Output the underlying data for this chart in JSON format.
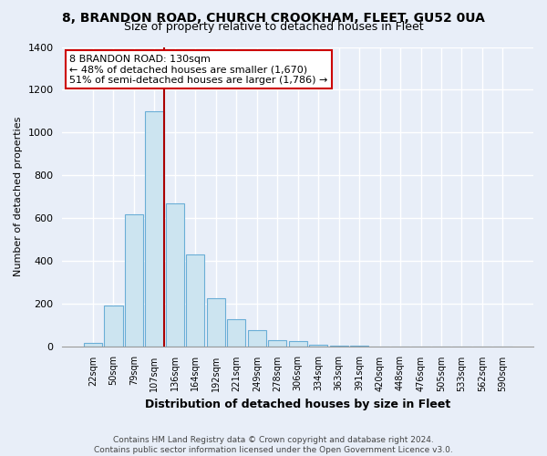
{
  "title": "8, BRANDON ROAD, CHURCH CROOKHAM, FLEET, GU52 0UA",
  "subtitle": "Size of property relative to detached houses in Fleet",
  "xlabel": "Distribution of detached houses by size in Fleet",
  "ylabel": "Number of detached properties",
  "bar_labels": [
    "22sqm",
    "50sqm",
    "79sqm",
    "107sqm",
    "136sqm",
    "164sqm",
    "192sqm",
    "221sqm",
    "249sqm",
    "278sqm",
    "306sqm",
    "334sqm",
    "363sqm",
    "391sqm",
    "420sqm",
    "448sqm",
    "476sqm",
    "505sqm",
    "533sqm",
    "562sqm",
    "590sqm"
  ],
  "bar_values": [
    15,
    190,
    615,
    1100,
    670,
    430,
    225,
    125,
    75,
    30,
    22,
    5,
    3,
    2,
    0,
    0,
    0,
    0,
    0,
    0,
    0
  ],
  "bar_color": "#cce4f0",
  "bar_edge_color": "#6aaed6",
  "vline_color": "#aa0000",
  "annotation_text": "8 BRANDON ROAD: 130sqm\n← 48% of detached houses are smaller (1,670)\n51% of semi-detached houses are larger (1,786) →",
  "annotation_box_color": "#ffffff",
  "annotation_box_edge": "#cc0000",
  "ylim": [
    0,
    1400
  ],
  "yticks": [
    0,
    200,
    400,
    600,
    800,
    1000,
    1200,
    1400
  ],
  "footer_line1": "Contains HM Land Registry data © Crown copyright and database right 2024.",
  "footer_line2": "Contains public sector information licensed under the Open Government Licence v3.0.",
  "bg_color": "#e8eef8",
  "plot_bg_color": "#e8eef8",
  "grid_color": "#ffffff",
  "title_fontsize": 10,
  "subtitle_fontsize": 9
}
